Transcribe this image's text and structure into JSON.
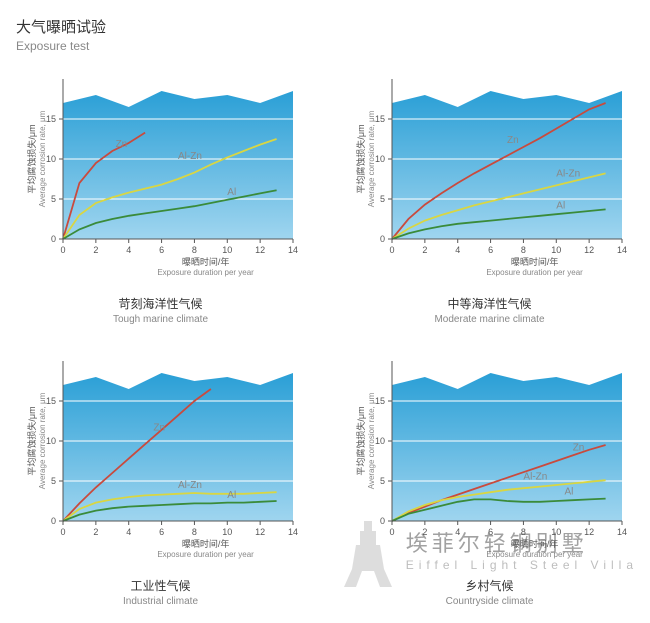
{
  "title_cn": "大气曝晒试验",
  "title_en": "Exposure test",
  "watermark_cn": "埃菲尔轻钢别墅",
  "watermark_en": "Eiffel Light Steel  Villa",
  "common": {
    "xlim": [
      0,
      14
    ],
    "ylim": [
      0,
      20
    ],
    "xticks": [
      0,
      2,
      4,
      6,
      8,
      10,
      12,
      14
    ],
    "yticks": [
      0,
      5,
      10,
      15
    ],
    "grid_lines_y": [
      5,
      10,
      15
    ],
    "xlabel_cn": "曝晒时间/年",
    "xlabel_en": "Exposure duration per year",
    "ylabel_cn": "平均腐蚀损失/μm",
    "ylabel_en": "Average corrosion rate, μm",
    "bg_top": [
      [
        0,
        17
      ],
      [
        2,
        18
      ],
      [
        4,
        16.5
      ],
      [
        6,
        18.5
      ],
      [
        8,
        17.5
      ],
      [
        10,
        18
      ],
      [
        12,
        17
      ],
      [
        14,
        18.5
      ]
    ],
    "bg_color_top": "#2a9fd6",
    "bg_color_bottom": "#9fd5ef",
    "axis_color": "#555555",
    "plot_bg": "#ffffff"
  },
  "series_meta": {
    "Zn": {
      "color": "#c94a3d",
      "width": 1.8
    },
    "Al-Zn": {
      "color": "#d9d642",
      "width": 1.8
    },
    "Al": {
      "color": "#3a8b3a",
      "width": 1.8
    }
  },
  "panels": [
    {
      "id": "tough",
      "caption_cn": "苛刻海洋性气候",
      "caption_en": "Tough marine climate",
      "series": {
        "Zn": [
          [
            0,
            0
          ],
          [
            1,
            7
          ],
          [
            2,
            9.5
          ],
          [
            3,
            11
          ],
          [
            4,
            12
          ],
          [
            5,
            13.3
          ]
        ],
        "Al-Zn": [
          [
            0,
            0
          ],
          [
            1,
            3
          ],
          [
            2,
            4.5
          ],
          [
            3,
            5.2
          ],
          [
            4,
            5.8
          ],
          [
            5,
            6.3
          ],
          [
            6,
            6.8
          ],
          [
            7,
            7.5
          ],
          [
            8,
            8.3
          ],
          [
            9,
            9.3
          ],
          [
            10,
            10.2
          ],
          [
            11,
            11
          ],
          [
            12,
            11.8
          ],
          [
            13,
            12.5
          ]
        ],
        "Al": [
          [
            0,
            0
          ],
          [
            1,
            1.2
          ],
          [
            2,
            2
          ],
          [
            3,
            2.5
          ],
          [
            4,
            2.9
          ],
          [
            5,
            3.2
          ],
          [
            6,
            3.5
          ],
          [
            7,
            3.8
          ],
          [
            8,
            4.1
          ],
          [
            9,
            4.5
          ],
          [
            10,
            4.9
          ],
          [
            11,
            5.3
          ],
          [
            12,
            5.7
          ],
          [
            13,
            6.1
          ]
        ]
      },
      "labels": {
        "Zn": [
          3.2,
          11.5
        ],
        "Al-Zn": [
          7,
          10
        ],
        "Al": [
          10,
          5.5
        ]
      }
    },
    {
      "id": "moderate",
      "caption_cn": "中等海洋性气候",
      "caption_en": "Moderate marine climate",
      "series": {
        "Zn": [
          [
            0,
            0
          ],
          [
            1,
            2.5
          ],
          [
            2,
            4.3
          ],
          [
            3,
            5.7
          ],
          [
            4,
            7
          ],
          [
            5,
            8.2
          ],
          [
            6,
            9.3
          ],
          [
            7,
            10.4
          ],
          [
            8,
            11.5
          ],
          [
            9,
            12.6
          ],
          [
            10,
            13.8
          ],
          [
            11,
            15
          ],
          [
            12,
            16.2
          ],
          [
            13,
            17
          ]
        ],
        "Al-Zn": [
          [
            0,
            0
          ],
          [
            1,
            1.3
          ],
          [
            2,
            2.3
          ],
          [
            3,
            3
          ],
          [
            4,
            3.6
          ],
          [
            5,
            4.2
          ],
          [
            6,
            4.7
          ],
          [
            7,
            5.2
          ],
          [
            8,
            5.7
          ],
          [
            9,
            6.2
          ],
          [
            10,
            6.7
          ],
          [
            11,
            7.2
          ],
          [
            12,
            7.7
          ],
          [
            13,
            8.2
          ]
        ],
        "Al": [
          [
            0,
            0
          ],
          [
            1,
            0.7
          ],
          [
            2,
            1.2
          ],
          [
            3,
            1.6
          ],
          [
            4,
            1.9
          ],
          [
            5,
            2.1
          ],
          [
            6,
            2.3
          ],
          [
            7,
            2.5
          ],
          [
            8,
            2.7
          ],
          [
            9,
            2.9
          ],
          [
            10,
            3.1
          ],
          [
            11,
            3.3
          ],
          [
            12,
            3.5
          ],
          [
            13,
            3.7
          ]
        ]
      },
      "labels": {
        "Zn": [
          7,
          12
        ],
        "Al-Zn": [
          10,
          7.8
        ],
        "Al": [
          10,
          3.8
        ]
      }
    },
    {
      "id": "industrial",
      "caption_cn": "工业性气候",
      "caption_en": "Industrial climate",
      "series": {
        "Zn": [
          [
            0,
            0
          ],
          [
            1,
            2.2
          ],
          [
            2,
            4.2
          ],
          [
            3,
            6
          ],
          [
            4,
            7.8
          ],
          [
            5,
            9.6
          ],
          [
            6,
            11.4
          ],
          [
            7,
            13.2
          ],
          [
            8,
            15
          ],
          [
            9,
            16.5
          ]
        ],
        "Al-Zn": [
          [
            0,
            0
          ],
          [
            1,
            1.5
          ],
          [
            2,
            2.3
          ],
          [
            3,
            2.7
          ],
          [
            4,
            3
          ],
          [
            5,
            3.2
          ],
          [
            6,
            3.3
          ],
          [
            7,
            3.4
          ],
          [
            8,
            3.5
          ],
          [
            9,
            3.4
          ],
          [
            10,
            3.4
          ],
          [
            11,
            3.4
          ],
          [
            12,
            3.5
          ],
          [
            13,
            3.6
          ]
        ],
        "Al": [
          [
            0,
            0
          ],
          [
            1,
            0.8
          ],
          [
            2,
            1.3
          ],
          [
            3,
            1.6
          ],
          [
            4,
            1.8
          ],
          [
            5,
            1.9
          ],
          [
            6,
            2
          ],
          [
            7,
            2.1
          ],
          [
            8,
            2.2
          ],
          [
            9,
            2.2
          ],
          [
            10,
            2.3
          ],
          [
            11,
            2.3
          ],
          [
            12,
            2.4
          ],
          [
            13,
            2.5
          ]
        ]
      },
      "labels": {
        "Zn": [
          5.5,
          11.3
        ],
        "Al-Zn": [
          7,
          4.1
        ],
        "Al": [
          10,
          2.9
        ]
      }
    },
    {
      "id": "countryside",
      "caption_cn": "乡村气候",
      "caption_en": "Countryside climate",
      "series": {
        "Zn": [
          [
            0,
            0
          ],
          [
            1,
            1
          ],
          [
            2,
            1.8
          ],
          [
            3,
            2.6
          ],
          [
            4,
            3.3
          ],
          [
            5,
            4
          ],
          [
            6,
            4.7
          ],
          [
            7,
            5.4
          ],
          [
            8,
            6.1
          ],
          [
            9,
            6.8
          ],
          [
            10,
            7.5
          ],
          [
            11,
            8.2
          ],
          [
            12,
            8.9
          ],
          [
            13,
            9.5
          ]
        ],
        "Al-Zn": [
          [
            0,
            0
          ],
          [
            1,
            1.2
          ],
          [
            2,
            2
          ],
          [
            3,
            2.6
          ],
          [
            4,
            3
          ],
          [
            5,
            3.3
          ],
          [
            6,
            3.6
          ],
          [
            7,
            3.9
          ],
          [
            8,
            4.1
          ],
          [
            9,
            4.3
          ],
          [
            10,
            4.5
          ],
          [
            11,
            4.7
          ],
          [
            12,
            4.9
          ],
          [
            13,
            5.1
          ]
        ],
        "Al": [
          [
            0,
            0
          ],
          [
            1,
            0.9
          ],
          [
            2,
            1.4
          ],
          [
            3,
            1.9
          ],
          [
            4,
            2.4
          ],
          [
            5,
            2.7
          ],
          [
            6,
            2.7
          ],
          [
            7,
            2.5
          ],
          [
            8,
            2.4
          ],
          [
            9,
            2.4
          ],
          [
            10,
            2.5
          ],
          [
            11,
            2.6
          ],
          [
            12,
            2.7
          ],
          [
            13,
            2.8
          ]
        ]
      },
      "labels": {
        "Zn": [
          11,
          8.8
        ],
        "Al-Zn": [
          8,
          5.2
        ],
        "Al": [
          10.5,
          3.3
        ]
      }
    }
  ]
}
